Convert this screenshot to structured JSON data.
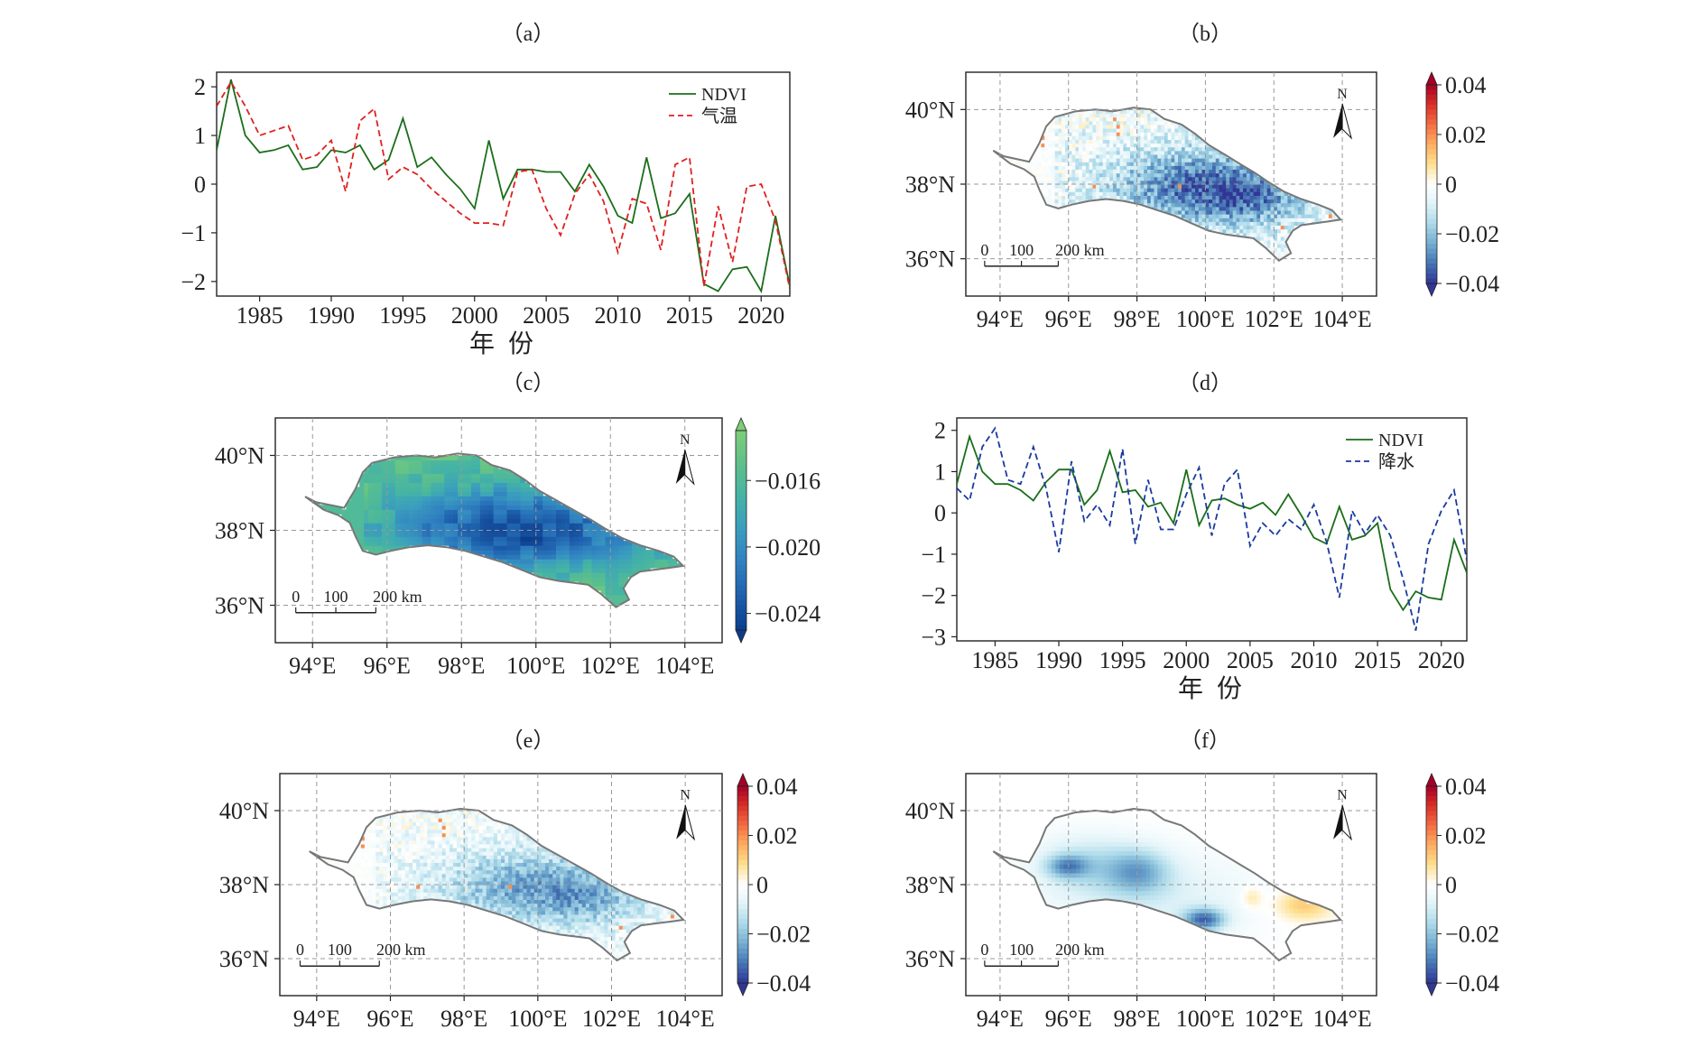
{
  "chart_data": [
    {
      "type": "line",
      "panel_label": "（a）",
      "xlabel": "年 份",
      "ylabel": "",
      "xlim": [
        1982,
        2022
      ],
      "ylim": [
        -2.3,
        2.3
      ],
      "xticks": [
        "1985",
        "1990",
        "1995",
        "2000",
        "2005",
        "2010",
        "2015",
        "2020"
      ],
      "yticks": [
        "2",
        "1",
        "0",
        "−1",
        "−2"
      ],
      "legend_position": "top-right",
      "x": [
        1982,
        1983,
        1984,
        1985,
        1986,
        1987,
        1988,
        1989,
        1990,
        1991,
        1992,
        1993,
        1994,
        1995,
        1996,
        1997,
        1998,
        1999,
        2000,
        2001,
        2002,
        2003,
        2004,
        2005,
        2006,
        2007,
        2008,
        2009,
        2010,
        2011,
        2012,
        2013,
        2014,
        2015,
        2016,
        2017,
        2018,
        2019,
        2020,
        2021,
        2022
      ],
      "series": [
        {
          "name": "NDVI",
          "color": "#1a6e1a",
          "dash": "solid",
          "values": [
            0.7,
            2.15,
            1.0,
            0.65,
            0.7,
            0.8,
            0.3,
            0.35,
            0.7,
            0.65,
            0.8,
            0.3,
            0.5,
            1.35,
            0.35,
            0.55,
            0.2,
            -0.1,
            -0.5,
            0.9,
            -0.3,
            0.3,
            0.3,
            0.25,
            0.25,
            -0.15,
            0.4,
            -0.05,
            -0.65,
            -0.8,
            0.55,
            -0.7,
            -0.6,
            -0.2,
            -2.05,
            -2.2,
            -1.75,
            -1.7,
            -2.2,
            -0.65,
            -2.1
          ]
        },
        {
          "name": "气温",
          "color": "#e02020",
          "dash": "dashed",
          "values": [
            1.6,
            2.1,
            1.6,
            1.0,
            1.1,
            1.2,
            0.5,
            0.6,
            0.9,
            -0.15,
            1.3,
            1.55,
            0.1,
            0.35,
            0.2,
            -0.1,
            -0.35,
            -0.6,
            -0.8,
            -0.8,
            -0.85,
            0.25,
            0.3,
            -0.5,
            -1.05,
            -0.2,
            0.2,
            -0.35,
            -1.4,
            -0.3,
            -0.4,
            -1.35,
            0.4,
            0.55,
            -2.1,
            -0.45,
            -1.6,
            -0.05,
            0.0,
            -0.75,
            -2.15
          ]
        }
      ]
    },
    {
      "type": "heatmap",
      "panel_label": "（b）",
      "xticks": [
        "94°E",
        "96°E",
        "98°E",
        "100°E",
        "102°E",
        "104°E"
      ],
      "yticks": [
        "40°N",
        "38°N",
        "36°N"
      ],
      "xlim": [
        93,
        105
      ],
      "ylim": [
        35,
        41
      ],
      "north_label": "N",
      "scalebar": {
        "labels": [
          "0",
          "100",
          "200 km"
        ]
      },
      "colorbar": {
        "ticks": [
          "0.04",
          "0.02",
          "0",
          "−0.02",
          "−0.04"
        ],
        "min": -0.04,
        "max": 0.04,
        "cmap": "RdYlBu_r"
      },
      "pattern": "fine"
    },
    {
      "type": "heatmap",
      "panel_label": "（c）",
      "xticks": [
        "94°E",
        "96°E",
        "98°E",
        "100°E",
        "102°E",
        "104°E"
      ],
      "yticks": [
        "40°N",
        "38°N",
        "36°N"
      ],
      "xlim": [
        93,
        105
      ],
      "ylim": [
        35,
        41
      ],
      "north_label": "N",
      "scalebar": {
        "labels": [
          "0",
          "100",
          "200 km"
        ]
      },
      "colorbar": {
        "ticks": [
          "−0.016",
          "−0.020",
          "−0.024"
        ],
        "min": -0.025,
        "max": -0.013,
        "cmap": "GnBu_r"
      },
      "pattern": "smooth_green"
    },
    {
      "type": "line",
      "panel_label": "（d）",
      "xlabel": "年 份",
      "ylabel": "",
      "xlim": [
        1982,
        2022
      ],
      "ylim": [
        -3.1,
        2.3
      ],
      "xticks": [
        "1985",
        "1990",
        "1995",
        "2000",
        "2005",
        "2010",
        "2015",
        "2020"
      ],
      "yticks": [
        "2",
        "1",
        "0",
        "−1",
        "−2",
        "−3"
      ],
      "legend_position": "top-right",
      "x": [
        1982,
        1983,
        1984,
        1985,
        1986,
        1987,
        1988,
        1989,
        1990,
        1991,
        1992,
        1993,
        1994,
        1995,
        1996,
        1997,
        1998,
        1999,
        2000,
        2001,
        2002,
        2003,
        2004,
        2005,
        2006,
        2007,
        2008,
        2009,
        2010,
        2011,
        2012,
        2013,
        2014,
        2015,
        2016,
        2017,
        2018,
        2019,
        2020,
        2021,
        2022
      ],
      "series": [
        {
          "name": "NDVI",
          "color": "#1a6e1a",
          "dash": "solid",
          "values": [
            0.7,
            1.85,
            1.0,
            0.7,
            0.7,
            0.55,
            0.3,
            0.75,
            1.05,
            1.05,
            0.2,
            0.55,
            1.5,
            0.5,
            0.55,
            0.15,
            0.25,
            -0.25,
            1.05,
            -0.3,
            0.3,
            0.35,
            0.2,
            0.1,
            0.25,
            -0.05,
            0.45,
            -0.05,
            -0.6,
            -0.75,
            0.15,
            -0.65,
            -0.55,
            -0.25,
            -1.85,
            -2.35,
            -1.9,
            -2.05,
            -2.1,
            -0.65,
            -1.45
          ]
        },
        {
          "name": "降水",
          "color": "#1a3aa0",
          "dash": "dashed",
          "values": [
            0.6,
            0.3,
            1.6,
            2.05,
            0.8,
            0.7,
            1.6,
            0.6,
            -0.95,
            1.25,
            -0.2,
            0.2,
            -0.3,
            1.55,
            -0.75,
            0.8,
            -0.4,
            -0.4,
            0.45,
            1.1,
            -0.55,
            0.7,
            1.05,
            -0.8,
            -0.25,
            -0.55,
            -0.15,
            -0.4,
            0.2,
            -0.7,
            -2.05,
            0.05,
            -0.5,
            -0.05,
            -0.55,
            -1.6,
            -2.85,
            -0.75,
            0.05,
            0.55,
            -1.15
          ]
        }
      ]
    },
    {
      "type": "heatmap",
      "panel_label": "（e）",
      "xticks": [
        "94°E",
        "96°E",
        "98°E",
        "100°E",
        "102°E",
        "104°E"
      ],
      "yticks": [
        "40°N",
        "38°N",
        "36°N"
      ],
      "xlim": [
        93,
        105
      ],
      "ylim": [
        35,
        41
      ],
      "north_label": "N",
      "scalebar": {
        "labels": [
          "0",
          "100",
          "200 km"
        ]
      },
      "colorbar": {
        "ticks": [
          "0.04",
          "0.02",
          "0",
          "−0.02",
          "−0.04"
        ],
        "min": -0.04,
        "max": 0.04,
        "cmap": "RdYlBu_r"
      },
      "pattern": "fine_light"
    },
    {
      "type": "heatmap",
      "panel_label": "（f）",
      "xticks": [
        "94°E",
        "96°E",
        "98°E",
        "100°E",
        "102°E",
        "104°E"
      ],
      "yticks": [
        "40°N",
        "38°N",
        "36°N"
      ],
      "xlim": [
        93,
        105
      ],
      "ylim": [
        35,
        41
      ],
      "north_label": "N",
      "scalebar": {
        "labels": [
          "0",
          "100",
          "200 km"
        ]
      },
      "colorbar": {
        "ticks": [
          "0.04",
          "0.02",
          "0",
          "−0.02",
          "−0.04"
        ],
        "min": -0.04,
        "max": 0.04,
        "cmap": "RdYlBu_r"
      },
      "pattern": "smooth_mixed"
    }
  ]
}
